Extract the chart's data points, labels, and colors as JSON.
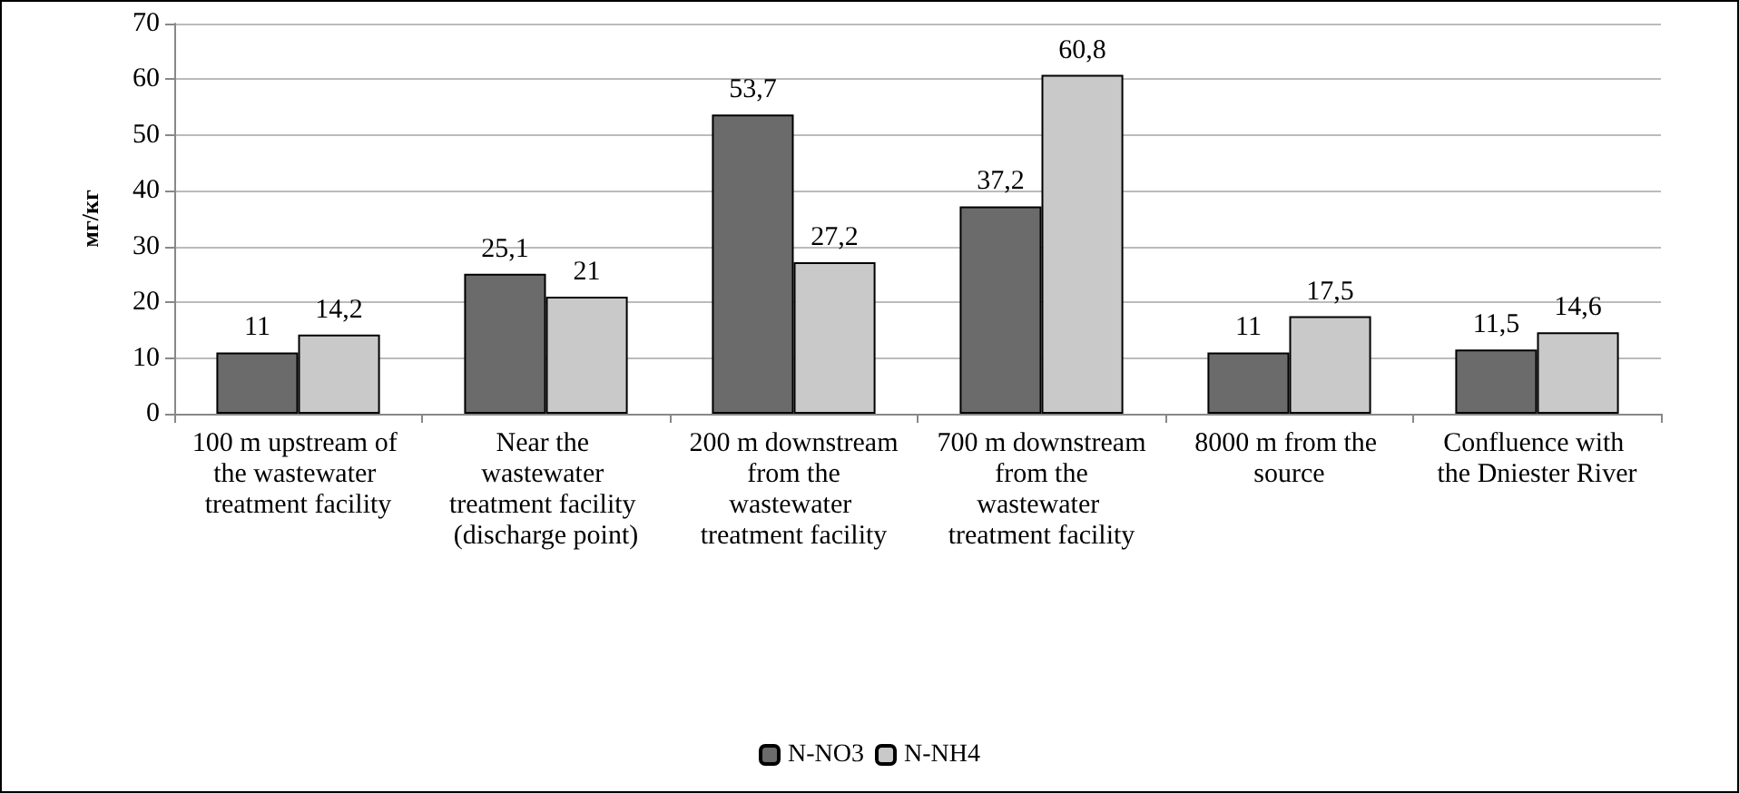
{
  "chart_data": {
    "type": "bar",
    "ylabel": "мг/кг",
    "categories": [
      "100 m upstream of the wastewater treatment facility",
      "Near the wastewater treatment facility (discharge point)",
      "200 m downstream from the wastewater treatment facility",
      "700 m downstream from the wastewater treatment facility",
      "8000 m from the source",
      "Confluence with the Dniester River"
    ],
    "series": [
      {
        "name": "N-NO3",
        "color": "#6b6b6b",
        "values": [
          11,
          25.1,
          53.7,
          37.2,
          11,
          11.5
        ],
        "value_labels": [
          "11",
          "25,1",
          "53,7",
          "37,2",
          "11",
          "11,5"
        ]
      },
      {
        "name": "N-NH4",
        "color": "#c9c9c9",
        "values": [
          14.2,
          21,
          27.2,
          60.8,
          17.5,
          14.6
        ],
        "value_labels": [
          "14,2",
          "21",
          "27,2",
          "60,8",
          "17,5",
          "14,6"
        ]
      }
    ],
    "ylim": [
      0,
      70
    ],
    "yticks": [
      0,
      10,
      20,
      30,
      40,
      50,
      60,
      70
    ],
    "grid": "y",
    "legend": "bottom"
  }
}
